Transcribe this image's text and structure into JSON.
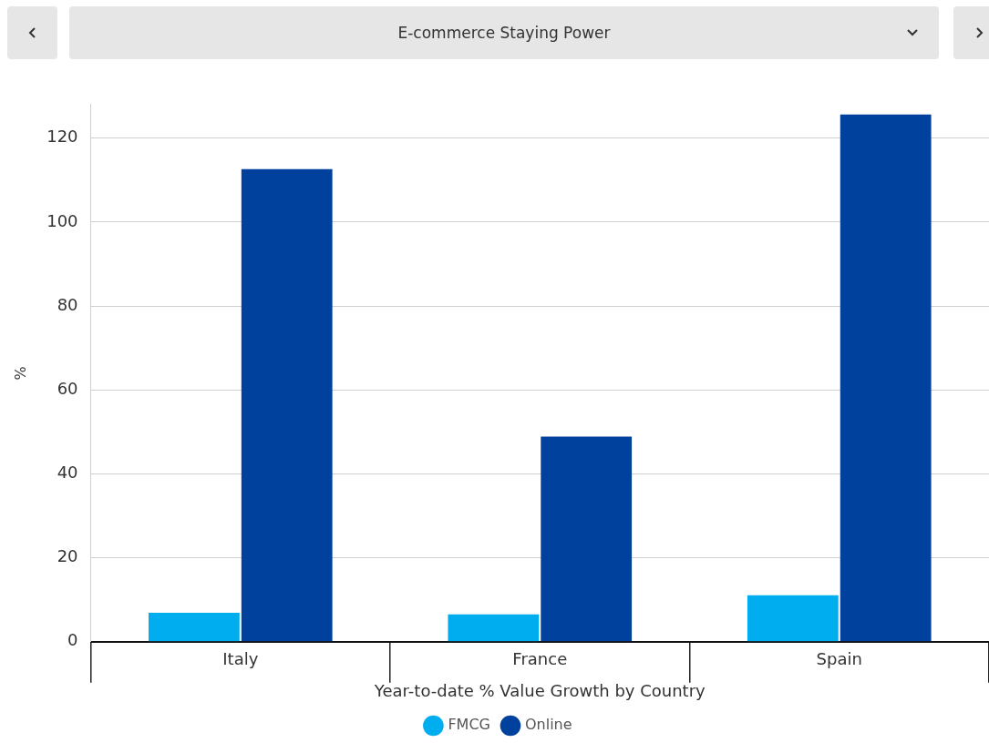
{
  "chart_data": {
    "type": "bar",
    "title": "E-commerce Staying Power",
    "xlabel": "Year-to-date % Value Growth by Country",
    "ylabel": "%",
    "categories": [
      "Italy",
      "France",
      "Spain"
    ],
    "series": [
      {
        "name": "FMCG",
        "color": "#00adef",
        "values": [
          6.9,
          6.5,
          11.1
        ]
      },
      {
        "name": "Online",
        "color": "#00419e",
        "values": [
          112.6,
          48.9,
          125.6
        ]
      }
    ],
    "ylim": [
      0,
      128
    ],
    "yticks": [
      0,
      20,
      40,
      60,
      80,
      100,
      120
    ],
    "grid": "y",
    "legend": "bottom"
  }
}
